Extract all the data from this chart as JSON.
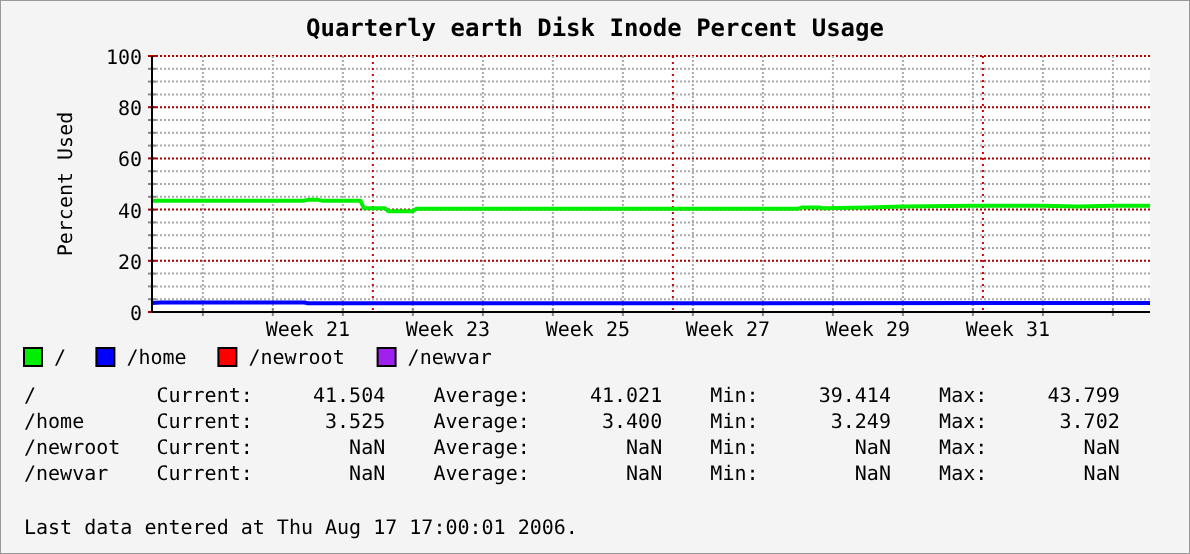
{
  "chart_data": {
    "type": "line",
    "title": "Quarterly earth Disk Inode Percent Usage",
    "ylabel": "Percent Used",
    "xlim": [
      "2006-05-09T22:00",
      "2006-08-17T17:00"
    ],
    "xticks": [
      {
        "value": "2006-05-15",
        "label": null
      },
      {
        "value": "2006-05-22",
        "label": null
      },
      {
        "value": "2006-05-25T12:00",
        "label": "Week 21"
      },
      {
        "value": "2006-05-29",
        "label": null
      },
      {
        "value": "2006-06-05",
        "label": null
      },
      {
        "value": "2006-06-08T12:00",
        "label": "Week 23"
      },
      {
        "value": "2006-06-12",
        "label": null
      },
      {
        "value": "2006-06-19",
        "label": null
      },
      {
        "value": "2006-06-22T12:00",
        "label": "Week 25"
      },
      {
        "value": "2006-06-26",
        "label": null
      },
      {
        "value": "2006-07-03",
        "label": null
      },
      {
        "value": "2006-07-06T12:00",
        "label": "Week 27"
      },
      {
        "value": "2006-07-10",
        "label": null
      },
      {
        "value": "2006-07-17",
        "label": null
      },
      {
        "value": "2006-07-20T12:00",
        "label": "Week 29"
      },
      {
        "value": "2006-07-24",
        "label": null
      },
      {
        "value": "2006-07-31",
        "label": null
      },
      {
        "value": "2006-08-03T12:00",
        "label": "Week 31"
      },
      {
        "value": "2006-08-07",
        "label": null
      },
      {
        "value": "2006-08-14",
        "label": null
      }
    ],
    "ylim": [
      0,
      100
    ],
    "yticks": [
      0,
      {
        "value": 5,
        "label": null
      },
      {
        "value": 10,
        "label": null
      },
      {
        "value": 15,
        "label": null
      },
      20,
      {
        "value": 25,
        "label": null
      },
      {
        "value": 30,
        "label": null
      },
      {
        "value": 35,
        "label": null
      },
      40,
      {
        "value": 45,
        "label": null
      },
      {
        "value": 50,
        "label": null
      },
      {
        "value": 55,
        "label": null
      },
      60,
      {
        "value": 65,
        "label": null
      },
      {
        "value": 70,
        "label": null
      },
      {
        "value": 75,
        "label": null
      },
      80,
      {
        "value": 85,
        "label": null
      },
      {
        "value": 90,
        "label": null
      },
      {
        "value": 95,
        "label": null
      },
      100
    ],
    "grid": true,
    "legend": "bottom",
    "line_style": "solid",
    "marker": "none",
    "ref_lines": [
      {
        "axis": "x",
        "value": "2006-06-01",
        "color": "#cc0000",
        "line_style": "dotted"
      },
      {
        "axis": "x",
        "value": "2006-07-01",
        "color": "#cc0000",
        "line_style": "dotted"
      },
      {
        "axis": "x",
        "value": "2006-08-01",
        "color": "#cc0000",
        "line_style": "dotted"
      }
    ],
    "series": [
      {
        "name": "/",
        "color": "#00ee00",
        "x": [
          "2006-05-09T22:00",
          "2006-05-25T04:00",
          "2006-05-25T12:00",
          "2006-05-26T13:00",
          "2006-05-26T22:00",
          "2006-05-30T18:00",
          "2006-05-31T03:00",
          "2006-06-02T05:00",
          "2006-06-02T13:00",
          "2006-06-05T00:00",
          "2006-06-05T08:00",
          "2006-07-13T12:00",
          "2006-07-13T21:00",
          "2006-07-15T15:00",
          "2006-07-16T00:00",
          "2006-07-20T12:00",
          "2006-07-24T00:00",
          "2006-07-31T00:00",
          "2006-08-07T00:00",
          "2006-08-10T12:00",
          "2006-08-14T00:00",
          "2006-08-17T17:00"
        ],
        "values": [
          43.5,
          43.5,
          43.8,
          43.8,
          43.5,
          43.5,
          40.5,
          40.5,
          39.4,
          39.4,
          40.3,
          40.3,
          40.8,
          40.8,
          40.5,
          40.8,
          41.2,
          41.5,
          41.5,
          41.2,
          41.5,
          41.5
        ]
      },
      {
        "name": "/home",
        "color": "#0000ff",
        "x": [
          "2006-05-09T22:00",
          "2006-05-10T19:00",
          "2006-05-25T04:00",
          "2006-05-25T12:00",
          "2006-08-17T17:00"
        ],
        "values": [
          3.5,
          3.7,
          3.7,
          3.4,
          3.5
        ]
      },
      {
        "name": "/newroot",
        "color": "#ff0000"
      },
      {
        "name": "/newvar",
        "color": "#a020f0"
      }
    ],
    "annotations": [
      "/          Current:     41.504    Average:     41.021    Min:     39.414    Max:     43.799",
      "/home      Current:      3.525    Average:      3.400    Min:      3.249    Max:      3.702",
      "/newroot   Current:        NaN    Average:        NaN    Min:        NaN    Max:        NaN",
      "/newvar    Current:        NaN    Average:        NaN    Min:        NaN    Max:        NaN",
      "Last data entered at Thu Aug 17 17:00:01 2006."
    ]
  }
}
